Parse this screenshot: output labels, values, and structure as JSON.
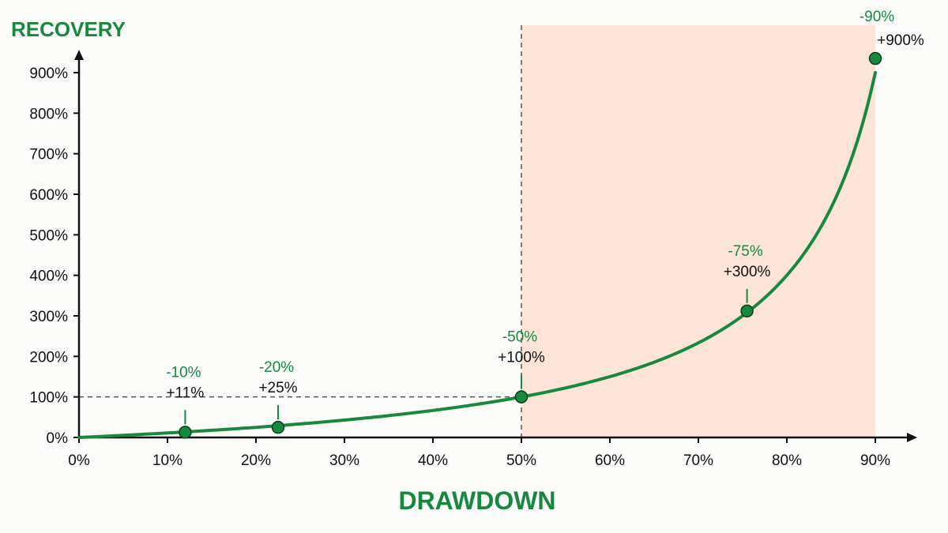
{
  "colors": {
    "accent": "#17893f",
    "danger_zone": "#fce5d8",
    "axis": "#111111",
    "guide": "#555555"
  },
  "chart_data": {
    "type": "line",
    "xlabel": "DRAWDOWN",
    "ylabel": "RECOVERY",
    "x_ticks": [
      "0%",
      "10%",
      "20%",
      "30%",
      "40%",
      "50%",
      "60%",
      "70%",
      "80%",
      "90%"
    ],
    "y_ticks": [
      "0%",
      "100%",
      "200%",
      "300%",
      "400%",
      "500%",
      "600%",
      "700%",
      "800%",
      "900%"
    ],
    "xlim": [
      0,
      90
    ],
    "ylim": [
      0,
      900
    ],
    "shaded_region": {
      "x_from": 50,
      "x_to": 90
    },
    "reference_level": {
      "x": 50,
      "y": 100
    },
    "series": [
      {
        "x": [
          0,
          10,
          20,
          30,
          40,
          50,
          60,
          70,
          75,
          80,
          85,
          90
        ],
        "values": [
          0,
          11,
          25,
          43,
          67,
          100,
          150,
          233,
          300,
          400,
          567,
          900
        ]
      }
    ],
    "annotations": [
      {
        "x": 12,
        "y": 13,
        "drawdown_label": "-10%",
        "recovery_label": "+11%"
      },
      {
        "x": 22.5,
        "y": 25,
        "drawdown_label": "-20%",
        "recovery_label": "+25%"
      },
      {
        "x": 50,
        "y": 100,
        "drawdown_label": "-50%",
        "recovery_label": "+100%"
      },
      {
        "x": 75.5,
        "y": 312,
        "drawdown_label": "-75%",
        "recovery_label": "+300%"
      },
      {
        "x": 90,
        "y": 935,
        "drawdown_label": "-90%",
        "recovery_label": "+900%"
      }
    ]
  }
}
